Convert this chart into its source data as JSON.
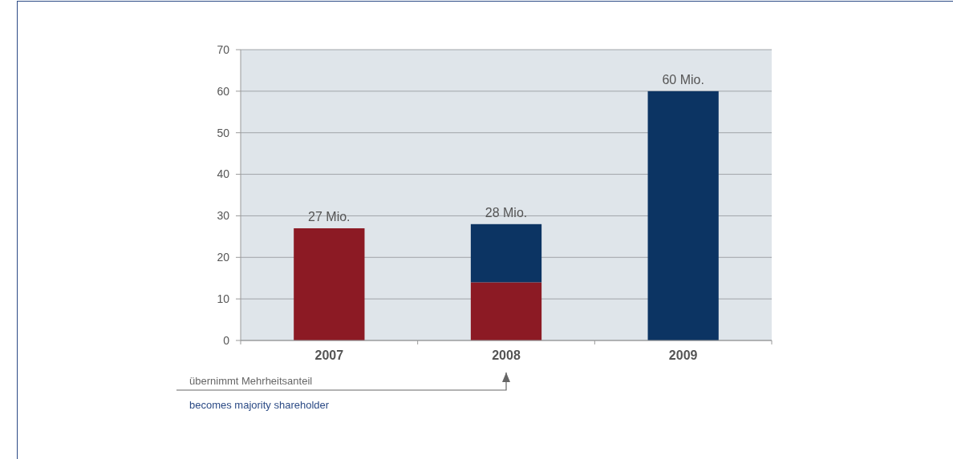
{
  "chart_data": {
    "type": "bar",
    "stacked": true,
    "categories": [
      "2007",
      "2008",
      "2009"
    ],
    "series": [
      {
        "color": "#8c1a24",
        "values": [
          27,
          14,
          null
        ]
      },
      {
        "color": "#0c3463",
        "values": [
          null,
          14,
          60
        ]
      }
    ],
    "totals": [
      "27 Mio.",
      "28 Mio.",
      "60 Mio."
    ],
    "ylim": [
      0,
      70
    ],
    "yticks": [
      0,
      10,
      20,
      30,
      40,
      50,
      60,
      70
    ],
    "grid": "y",
    "annotations": [
      "übernimmt Mehrheitsanteil",
      "becomes majority shareholder"
    ]
  }
}
